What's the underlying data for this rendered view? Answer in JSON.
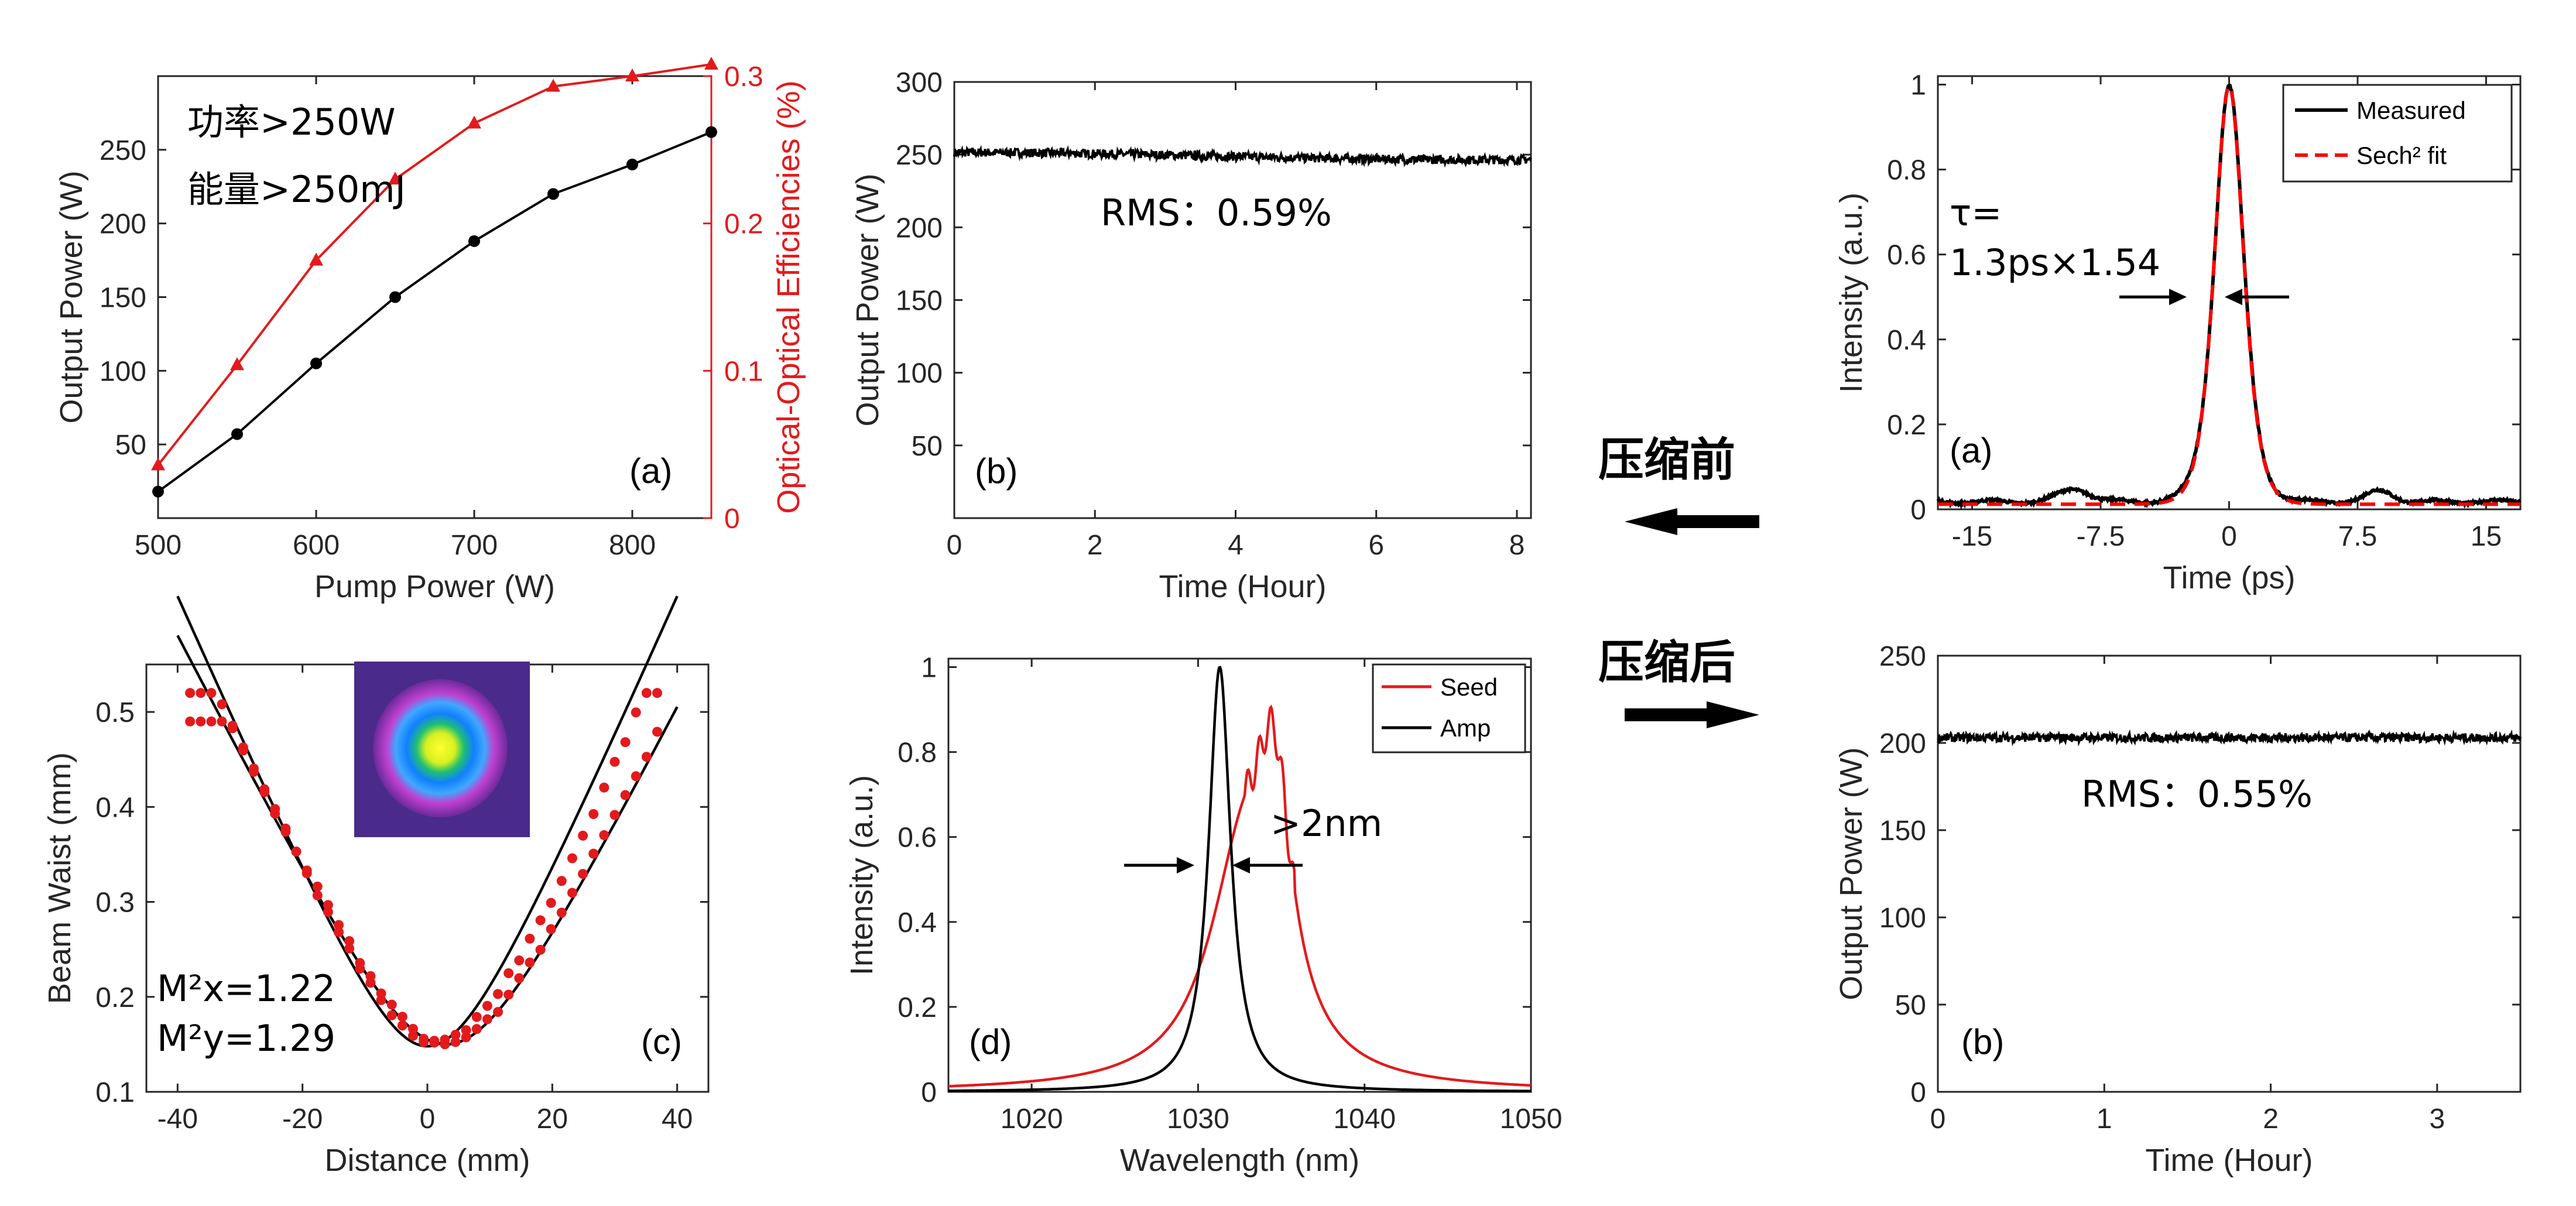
{
  "chart_data": [
    {
      "id": "p1",
      "type": "line",
      "panel_tag": "(a)",
      "xlabel": "Pump Power (W)",
      "ylabel": "Output Power (W)",
      "y2label": "Optical-Optical Efficiencies (%)",
      "xlim": [
        500,
        850
      ],
      "ylim": [
        0,
        300
      ],
      "y2lim": [
        0,
        0.3
      ],
      "xticks": [
        500,
        600,
        700,
        800
      ],
      "yticks": [
        50,
        100,
        150,
        200,
        250
      ],
      "y2ticks": [
        0,
        0.1,
        0.2,
        0.3
      ],
      "annotations": [
        "功率>250W",
        "能量>250mJ"
      ],
      "series": [
        {
          "axis": "left",
          "color": "#000000",
          "marker": "circle",
          "x": [
            500,
            550,
            600,
            650,
            700,
            750,
            800,
            850
          ],
          "y": [
            18,
            57,
            105,
            150,
            188,
            220,
            240,
            262
          ]
        },
        {
          "axis": "right",
          "color": "#e31a1c",
          "marker": "triangle",
          "x": [
            500,
            550,
            600,
            650,
            700,
            750,
            800,
            850
          ],
          "y": [
            0.036,
            0.104,
            0.175,
            0.23,
            0.268,
            0.293,
            0.3,
            0.308
          ]
        }
      ]
    },
    {
      "id": "p2",
      "type": "line",
      "panel_tag": "(b)",
      "xlabel": "Time (Hour)",
      "ylabel": "Output Power (W)",
      "xlim": [
        0,
        8.2
      ],
      "ylim": [
        0,
        300
      ],
      "xticks": [
        0,
        2,
        4,
        6,
        8
      ],
      "yticks": [
        50,
        100,
        150,
        200,
        250,
        300
      ],
      "annotations": [
        "RMS：0.59%"
      ],
      "series": [
        {
          "color": "#000000",
          "level": 251,
          "noise": 3
        }
      ]
    },
    {
      "id": "p3",
      "type": "line",
      "panel_tag": "(a)",
      "xlabel": "Time (ps)",
      "ylabel": "Intensity (a.u.)",
      "xlim": [
        -17,
        17
      ],
      "ylim": [
        0,
        1.02
      ],
      "xticks": [
        -15,
        -7.5,
        0,
        7.5,
        15
      ],
      "xticklabels": [
        "-15",
        "-7.5",
        "0",
        "7.5",
        "15"
      ],
      "yticks": [
        0,
        0.2,
        0.4,
        0.6,
        0.8,
        1
      ],
      "annotations": [
        "τ=",
        "1.3ps×1.54"
      ],
      "legend_position": "top-right",
      "series": [
        {
          "name": "Measured",
          "color": "#000000",
          "style": "solid",
          "fwhm_ps": 2.0
        },
        {
          "name": "Sech² fit",
          "color": "#ff0000",
          "style": "dashed",
          "fwhm_ps": 2.0
        }
      ]
    },
    {
      "id": "p4",
      "type": "scatter",
      "panel_tag": "(c)",
      "xlabel": "Distance (mm)",
      "ylabel": "Beam Waist (mm)",
      "xlim": [
        -45,
        45
      ],
      "ylim": [
        0.1,
        0.55
      ],
      "xticks": [
        -40,
        -20,
        0,
        20,
        40
      ],
      "yticks": [
        0.1,
        0.2,
        0.3,
        0.4,
        0.5
      ],
      "annotations": [
        "M²x=1.22",
        "M²y=1.29"
      ],
      "series": [
        {
          "name": "x-fit",
          "color": "#000000",
          "w0": 0.15,
          "z0": 3,
          "zR": 11.5
        },
        {
          "name": "y-fit",
          "color": "#000000",
          "w0": 0.148,
          "z0": 0,
          "zR": 9.8
        },
        {
          "name": "x-data",
          "color": "#e31a1c",
          "x_range": [
            -38,
            37
          ]
        },
        {
          "name": "y-data",
          "color": "#e31a1c",
          "x_range": [
            -38,
            37
          ]
        }
      ]
    },
    {
      "id": "p5",
      "type": "line",
      "panel_tag": "(d)",
      "xlabel": "Wavelength (nm)",
      "ylabel": "Intensity (a.u.)",
      "xlim": [
        1015,
        1050
      ],
      "ylim": [
        0,
        1.02
      ],
      "xticks": [
        1020,
        1030,
        1040,
        1050
      ],
      "yticks": [
        0,
        0.2,
        0.4,
        0.6,
        0.8,
        1
      ],
      "annotations": [
        ">2nm"
      ],
      "legend_position": "top-right",
      "series": [
        {
          "name": "Seed",
          "color": "#e31a1c",
          "center_nm": 1033.6,
          "fwhm_nm": 4.4
        },
        {
          "name": "Amp",
          "color": "#000000",
          "center_nm": 1031.3,
          "fwhm_nm": 1.6
        }
      ]
    },
    {
      "id": "p6",
      "type": "line",
      "panel_tag": "(b)",
      "xlabel": "Time (Hour)",
      "ylabel": "Output Power (W)",
      "xlim": [
        0,
        3.5
      ],
      "ylim": [
        0,
        250
      ],
      "xticks": [
        0,
        1,
        2,
        3
      ],
      "yticks": [
        0,
        50,
        100,
        150,
        200,
        250
      ],
      "annotations": [
        "RMS：0.55%"
      ],
      "series": [
        {
          "color": "#000000",
          "level": 203,
          "noise": 2.5
        }
      ]
    }
  ],
  "labels": {
    "before_compression": "压缩前",
    "after_compression": "压缩后"
  },
  "colors": {
    "red": "#e31a1c",
    "black": "#000000",
    "axis": "#262626"
  }
}
